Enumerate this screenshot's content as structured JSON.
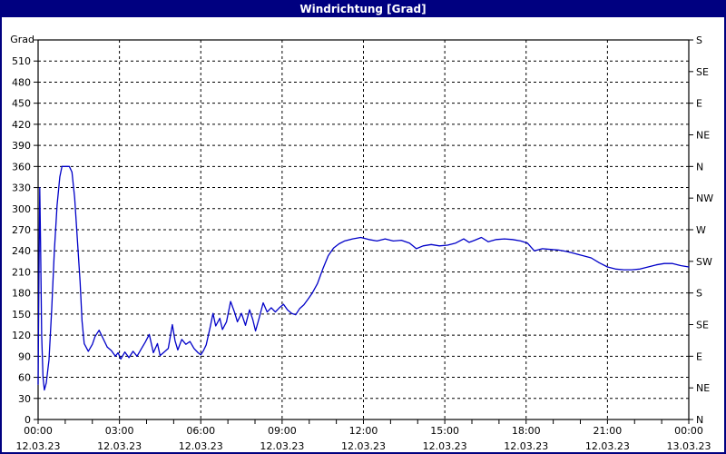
{
  "window": {
    "title": "Windrichtung [Grad]"
  },
  "colors": {
    "titlebar_bg": "#000080",
    "titlebar_text": "#FFFFFF",
    "window_border": "#000080",
    "background": "#FFFFFF",
    "line": "#0000C8",
    "grid": "#000000",
    "text": "#000000"
  },
  "chart_data": {
    "type": "line",
    "title": "Windrichtung [Grad]",
    "xlabel": "",
    "ylabel": "Grad",
    "x_axis": {
      "min_hours": 0,
      "max_hours": 24,
      "major_step_hours": 3,
      "minor_step_hours": 1,
      "labels": [
        {
          "time": "00:00",
          "date": "12.03.23"
        },
        {
          "time": "03:00",
          "date": "12.03.23"
        },
        {
          "time": "06:00",
          "date": "12.03.23"
        },
        {
          "time": "09:00",
          "date": "12.03.23"
        },
        {
          "time": "12:00",
          "date": "12.03.23"
        },
        {
          "time": "15:00",
          "date": "12.03.23"
        },
        {
          "time": "18:00",
          "date": "12.03.23"
        },
        {
          "time": "21:00",
          "date": "12.03.23"
        },
        {
          "time": "00:00",
          "date": "13.03.23"
        }
      ]
    },
    "y_axis_left": {
      "unit": "Grad",
      "min": 0,
      "max": 540,
      "tick_step": 30,
      "highest_labeled_tick": 510
    },
    "y_axis_right": {
      "tick_step": 45,
      "labels_bottom_to_top": [
        "N",
        "NE",
        "E",
        "SE",
        "S",
        "SW",
        "W",
        "NW",
        "N",
        "NE",
        "E",
        "SE",
        "S"
      ]
    },
    "grid": {
      "horizontal_step": 30,
      "vertical_step_hours": 3,
      "style": "dashed",
      "on": true
    },
    "legend": "none",
    "series": [
      {
        "name": "Windrichtung",
        "unit": "Grad",
        "x_hours": [
          0.0,
          0.03,
          0.06,
          0.09,
          0.13,
          0.18,
          0.23,
          0.3,
          0.4,
          0.5,
          0.6,
          0.7,
          0.8,
          0.88,
          1.0,
          1.15,
          1.25,
          1.35,
          1.45,
          1.55,
          1.62,
          1.7,
          1.85,
          2.0,
          2.1,
          2.25,
          2.4,
          2.55,
          2.7,
          2.85,
          2.95,
          3.05,
          3.2,
          3.35,
          3.5,
          3.65,
          3.8,
          3.95,
          4.1,
          4.25,
          4.4,
          4.5,
          4.65,
          4.8,
          4.95,
          5.05,
          5.15,
          5.3,
          5.45,
          5.6,
          5.75,
          5.9,
          6.0,
          6.1,
          6.2,
          6.35,
          6.45,
          6.55,
          6.7,
          6.8,
          6.95,
          7.1,
          7.25,
          7.35,
          7.5,
          7.65,
          7.8,
          7.92,
          8.02,
          8.15,
          8.3,
          8.45,
          8.6,
          8.75,
          8.9,
          9.05,
          9.2,
          9.35,
          9.5,
          9.65,
          9.8,
          9.95,
          10.1,
          10.3,
          10.5,
          10.7,
          10.9,
          11.1,
          11.3,
          11.6,
          11.9,
          12.2,
          12.5,
          12.8,
          13.1,
          13.4,
          13.7,
          13.95,
          14.2,
          14.5,
          14.8,
          15.1,
          15.4,
          15.7,
          15.9,
          16.1,
          16.35,
          16.6,
          16.9,
          17.2,
          17.5,
          17.8,
          18.05,
          18.3,
          18.6,
          18.9,
          19.2,
          19.5,
          19.8,
          20.1,
          20.4,
          20.7,
          21.0,
          21.3,
          21.6,
          21.9,
          22.2,
          22.5,
          22.8,
          23.1,
          23.4,
          23.7,
          24.0
        ],
        "values": [
          50,
          200,
          330,
          250,
          120,
          60,
          42,
          52,
          85,
          155,
          240,
          305,
          345,
          360,
          360,
          360,
          352,
          315,
          255,
          195,
          140,
          108,
          97,
          107,
          118,
          127,
          115,
          103,
          98,
          90,
          95,
          86,
          96,
          88,
          97,
          90,
          100,
          110,
          121,
          95,
          108,
          91,
          96,
          101,
          135,
          112,
          99,
          114,
          107,
          111,
          101,
          95,
          92,
          98,
          106,
          132,
          151,
          133,
          144,
          128,
          139,
          168,
          152,
          139,
          151,
          134,
          156,
          142,
          126,
          144,
          166,
          153,
          159,
          153,
          159,
          164,
          156,
          151,
          149,
          158,
          163,
          171,
          179,
          193,
          214,
          233,
          244,
          250,
          254,
          257,
          259,
          256,
          254,
          257,
          254,
          255,
          251,
          243,
          247,
          249,
          247,
          248,
          251,
          257,
          252,
          255,
          259,
          253,
          256,
          257,
          256,
          254,
          251,
          240,
          243,
          242,
          241,
          239,
          236,
          233,
          230,
          223,
          217,
          214,
          213,
          213,
          214,
          217,
          220,
          222,
          222,
          219,
          217
        ]
      }
    ]
  }
}
